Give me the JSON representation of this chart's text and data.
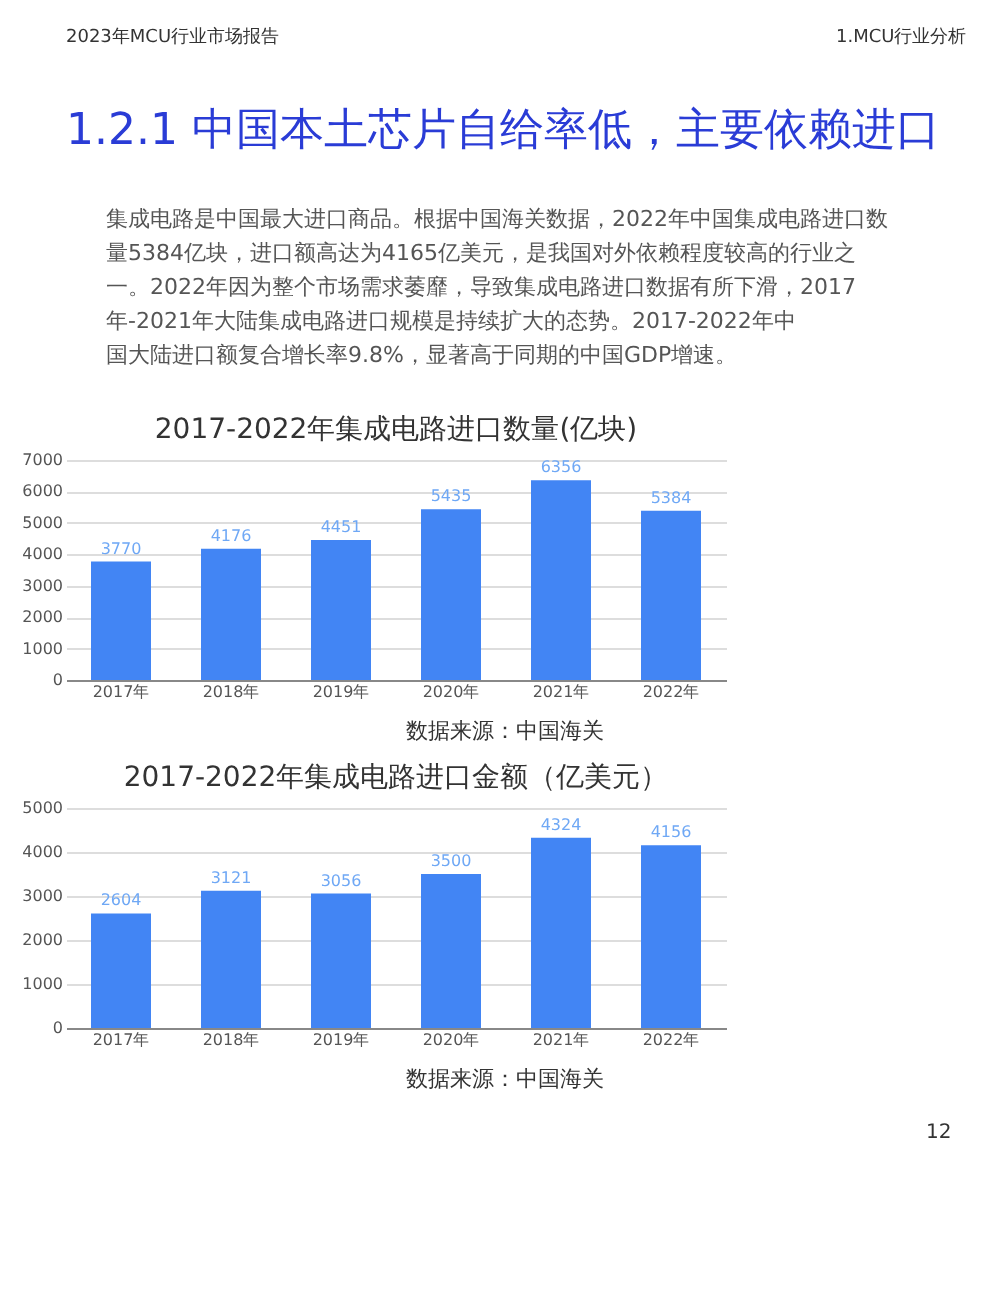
{
  "chart_data": [
    {
      "type": "bar",
      "title": "2017-2022年集成电路进口数量(亿块)",
      "categories": [
        "2017年",
        "2018年",
        "2019年",
        "2020年",
        "2021年",
        "2022年"
      ],
      "values": [
        3770,
        4176,
        4451,
        5435,
        6356,
        5384
      ],
      "color": "#4285f4",
      "ylim": [
        0,
        7000
      ],
      "yticks": [
        0,
        1000,
        2000,
        3000,
        4000,
        5000,
        6000,
        7000
      ],
      "grid": "y",
      "data_labels": true,
      "annotations": [
        "2023年MCU行业市场报告",
        "1.MCU行业分析",
        "1.2.1 中国本土芯片自给率低，主要依赖进口",
        "集成电路是中国最大进口商品。根据中国海关数据，2022年中国集成电路进口数量5384亿块，进口额高达为4165亿美元，是我国对外依赖程度较高的行业之一。2022年因为整个市场需求萎靡，导致集成电路进口数据有所下滑，2017年-2021年大陆集成电路进口规模是持续扩大的态势。2017-2022年中国大陆进口额复合增长率9.8%，显著高于同期的中国GDP增速。",
        "数据来源：中国海关"
      ]
    },
    {
      "type": "bar",
      "title": "2017-2022年集成电路进口金额（亿美元）",
      "categories": [
        "2017年",
        "2018年",
        "2019年",
        "2020年",
        "2021年",
        "2022年"
      ],
      "values": [
        2604,
        3121,
        3056,
        3500,
        4324,
        4156
      ],
      "color": "#4285f4",
      "ylim": [
        0,
        5000
      ],
      "yticks": [
        0,
        1000,
        2000,
        3000,
        4000,
        5000
      ],
      "grid": "y",
      "data_labels": true,
      "annotations": [
        "数据来源：中国海关",
        "12"
      ]
    }
  ]
}
